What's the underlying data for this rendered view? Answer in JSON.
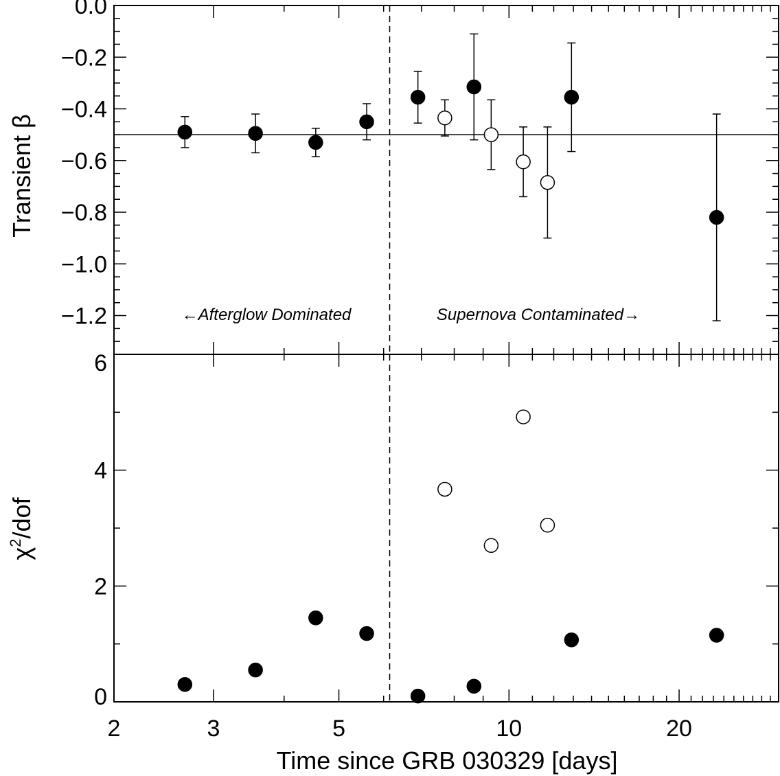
{
  "chart_data": [
    {
      "type": "scatter",
      "panel": "top",
      "ylabel": "Transient β",
      "xscale": "log",
      "xlim": [
        2,
        30
      ],
      "ylim": [
        -1.35,
        0.0
      ],
      "yticks": [
        0.0,
        -0.2,
        -0.4,
        -0.6,
        -0.8,
        -1.0,
        -1.2
      ],
      "ytick_labels": [
        "0.0",
        "−0.2",
        "−0.4",
        "−0.6",
        "−0.8",
        "−1.0",
        "−1.2"
      ],
      "reference_line_y": -0.5,
      "vertical_divider_x": 6.15,
      "annotations": [
        "←Afterglow Dominated",
        "Supernova Contaminated→"
      ],
      "series": [
        {
          "marker": "filled-circle",
          "x": [
            2.67,
            3.56,
            4.55,
            5.6,
            6.9,
            8.67,
            12.9,
            23.3
          ],
          "y": [
            -0.49,
            -0.495,
            -0.53,
            -0.45,
            -0.355,
            -0.315,
            -0.355,
            -0.82
          ],
          "yerr": [
            0.06,
            0.075,
            0.055,
            0.07,
            0.1,
            0.205,
            0.21,
            0.4
          ]
        },
        {
          "marker": "open-circle",
          "x": [
            7.7,
            9.3,
            10.6,
            11.7
          ],
          "y": [
            -0.435,
            -0.5,
            -0.605,
            -0.685
          ],
          "yerr": [
            0.07,
            0.135,
            0.135,
            0.215
          ]
        }
      ]
    },
    {
      "type": "scatter",
      "panel": "bottom",
      "ylabel": "χ²/dof",
      "ylabel_main": "χ",
      "ylabel_sup": "2",
      "ylabel_tail": "/dof",
      "xlabel": "Time since GRB 030329 [days]",
      "xscale": "log",
      "xlim": [
        2,
        30
      ],
      "ylim": [
        0,
        6
      ],
      "yticks": [
        0,
        2,
        4,
        6
      ],
      "ytick_labels": [
        "0",
        "2",
        "4",
        "6"
      ],
      "xticks": [
        2,
        3,
        5,
        10,
        20
      ],
      "xtick_labels": [
        "2",
        "3",
        "5",
        "10",
        "20"
      ],
      "vertical_divider_x": 6.15,
      "series": [
        {
          "marker": "filled-circle",
          "x": [
            2.67,
            3.56,
            4.55,
            5.6,
            6.9,
            8.67,
            12.9,
            23.3
          ],
          "y": [
            0.3,
            0.55,
            1.45,
            1.18,
            0.1,
            0.27,
            1.07,
            1.15
          ]
        },
        {
          "marker": "open-circle",
          "x": [
            7.7,
            9.3,
            10.6,
            11.7
          ],
          "y": [
            3.67,
            2.7,
            4.92,
            3.05
          ]
        }
      ]
    }
  ]
}
